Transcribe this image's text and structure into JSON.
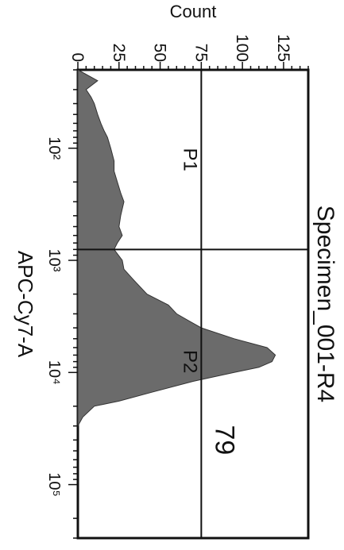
{
  "chart_data": {
    "type": "area",
    "title": "Specimen_001-R4",
    "xlabel": "APC-Cy7-A",
    "ylabel": "Count",
    "x_scale": "log",
    "xlim": [
      20,
      300000
    ],
    "ylim": [
      0,
      140
    ],
    "x_ticks": [
      {
        "value": 100,
        "label": "10²"
      },
      {
        "value": 1000,
        "label": "10³"
      },
      {
        "value": 10000,
        "label": "10⁴"
      },
      {
        "value": 100000,
        "label": "10⁵"
      }
    ],
    "y_ticks": [
      {
        "value": 0,
        "label": "0"
      },
      {
        "value": 25,
        "label": "25"
      },
      {
        "value": 50,
        "label": "50"
      },
      {
        "value": 75,
        "label": "75"
      },
      {
        "value": 100,
        "label": "100"
      },
      {
        "value": 125,
        "label": "125"
      }
    ],
    "series": [
      {
        "fill": "#6b6b6b",
        "x": [
          20,
          25,
          30,
          35,
          40,
          50,
          60,
          70,
          80,
          100,
          130,
          160,
          200,
          250,
          300,
          400,
          500,
          600,
          700,
          800,
          1000,
          1200,
          1500,
          2000,
          2500,
          3000,
          3500,
          4000,
          5000,
          6000,
          7000,
          8000,
          9000,
          10000,
          12000,
          15000,
          18000,
          20000,
          25000,
          30000
        ],
        "y": [
          0,
          12,
          5,
          8,
          10,
          12,
          14,
          16,
          18,
          20,
          22,
          22,
          24,
          26,
          28,
          26,
          25,
          27,
          24,
          22,
          27,
          28,
          34,
          42,
          55,
          60,
          68,
          75,
          95,
          115,
          120,
          118,
          110,
          95,
          70,
          45,
          25,
          10,
          3,
          0
        ]
      }
    ],
    "gates": [
      {
        "name": "P1",
        "x_range": [
          20,
          800
        ],
        "y": 75
      },
      {
        "name": "P2",
        "x_range": [
          800,
          300000
        ],
        "y": 75,
        "percent": "79"
      }
    ]
  }
}
